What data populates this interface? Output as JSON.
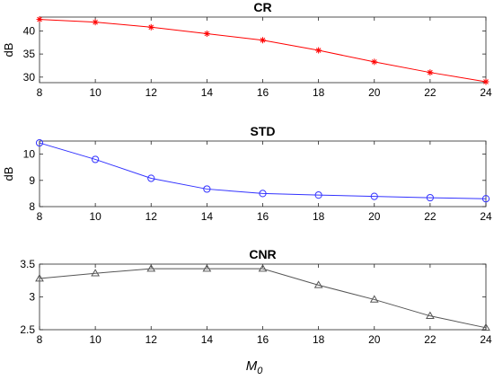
{
  "xlabel": {
    "main": "M",
    "sub": "0"
  },
  "chart_data": [
    {
      "type": "line",
      "title": "CR",
      "ylabel": "dB",
      "marker": "star",
      "color": "#ff0000",
      "x": [
        8,
        10,
        12,
        14,
        16,
        18,
        20,
        22,
        24
      ],
      "xlim": [
        8,
        24
      ],
      "ylim": [
        28.8,
        43
      ],
      "yticks": [
        30,
        35,
        40
      ],
      "series": [
        {
          "values": [
            42.5,
            41.9,
            40.8,
            39.4,
            38.0,
            35.8,
            33.3,
            31.0,
            29.0
          ]
        }
      ]
    },
    {
      "type": "line",
      "title": "STD",
      "ylabel": "dB",
      "marker": "circle",
      "color": "#3333ff",
      "x": [
        8,
        10,
        12,
        14,
        16,
        18,
        20,
        22,
        24
      ],
      "xlim": [
        8,
        24
      ],
      "ylim": [
        8,
        10.5
      ],
      "yticks": [
        8,
        9,
        10
      ],
      "series": [
        {
          "values": [
            10.43,
            9.8,
            9.08,
            8.67,
            8.5,
            8.44,
            8.39,
            8.34,
            8.3
          ]
        }
      ]
    },
    {
      "type": "line",
      "title": "CNR",
      "ylabel": "",
      "marker": "triangle",
      "color": "#555555",
      "x": [
        8,
        10,
        12,
        14,
        16,
        18,
        20,
        22,
        24
      ],
      "xlim": [
        8,
        24
      ],
      "ylim": [
        2.5,
        3.5
      ],
      "yticks": [
        2.5,
        3,
        3.5
      ],
      "series": [
        {
          "values": [
            3.28,
            3.36,
            3.43,
            3.43,
            3.43,
            3.18,
            2.96,
            2.71,
            2.53
          ]
        }
      ]
    }
  ]
}
